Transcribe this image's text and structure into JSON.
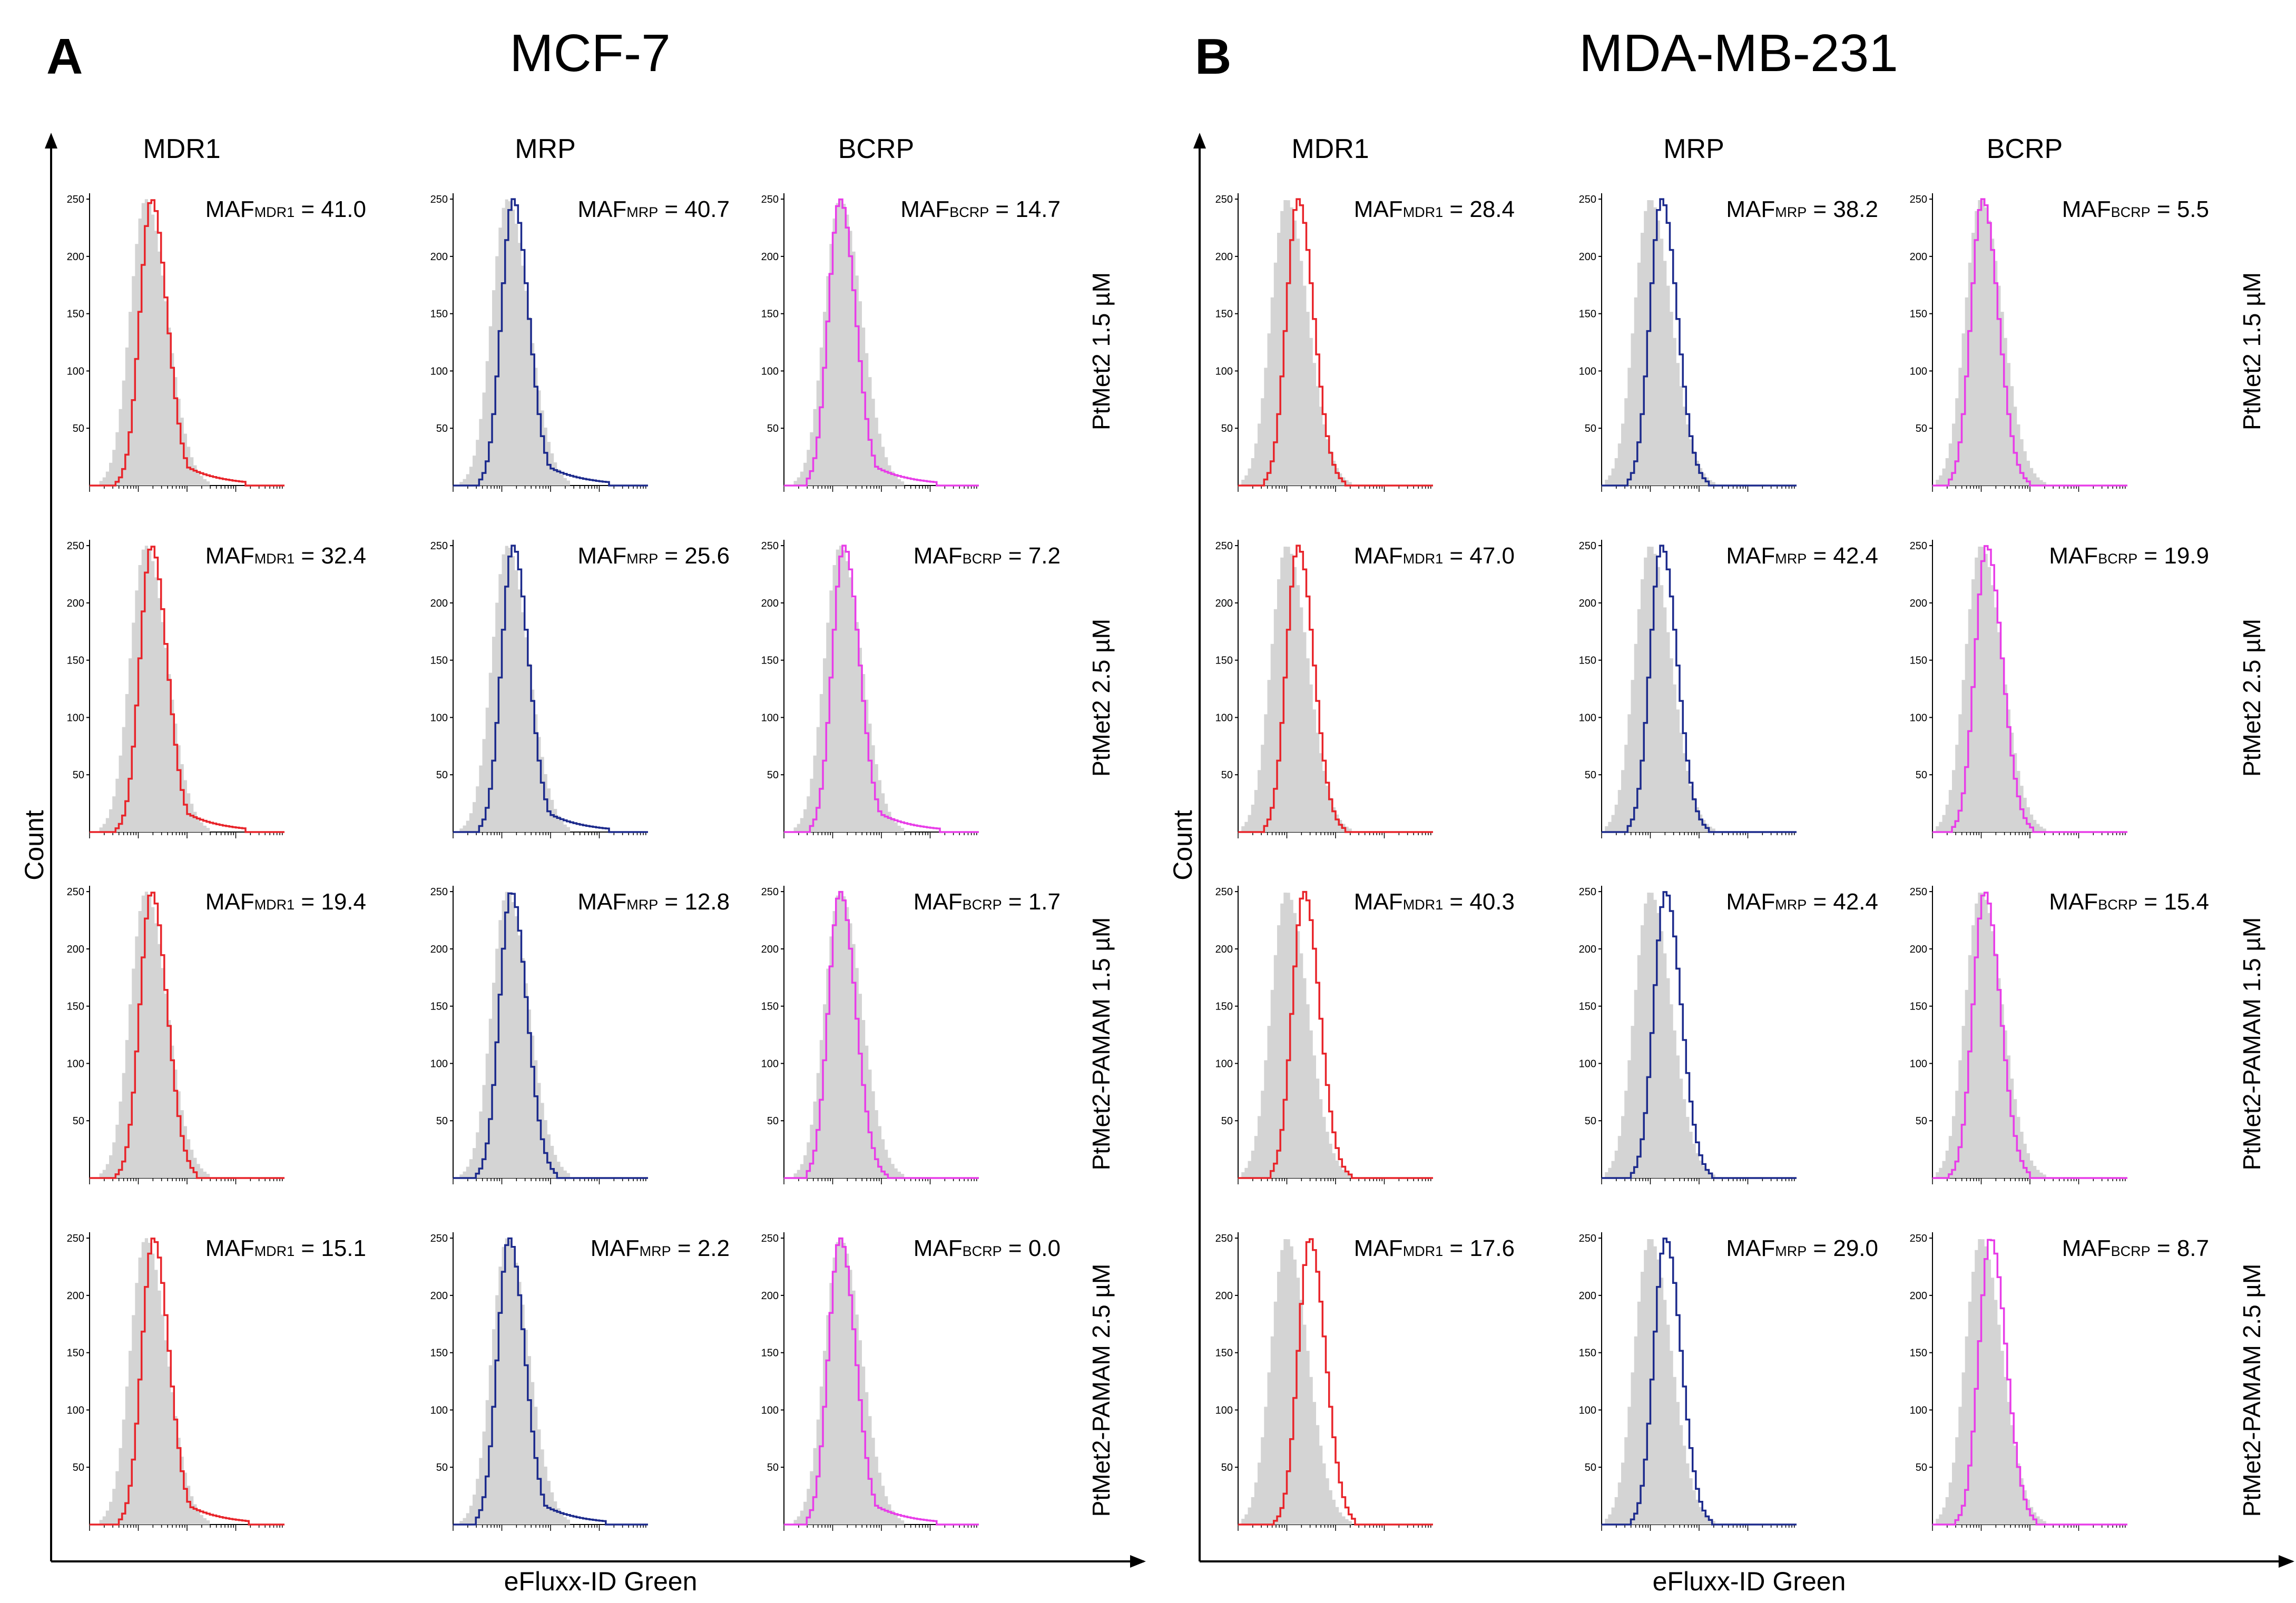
{
  "figure": {
    "panels": [
      {
        "letter": "A",
        "title": "MCF-7",
        "y_axis_label": "Count",
        "x_axis_label": "eFluxx-ID Green",
        "columns": [
          "MDR1",
          "MRP",
          "BCRP"
        ]
      },
      {
        "letter": "B",
        "title": "MDA-MB-231",
        "y_axis_label": "Count",
        "x_axis_label": "eFluxx-ID Green",
        "columns": [
          "MDR1",
          "MRP",
          "BCRP"
        ]
      }
    ],
    "rows": [
      "PtMet2 1.5 µM",
      "PtMet2 2.5 µM",
      "PtMet2-PAMAM 1.5 µM",
      "PtMet2-PAMAM 2.5 µM"
    ],
    "colors": {
      "MDR1": "#e8242a",
      "MRP": "#1c2a8c",
      "BCRP": "#e83de8",
      "control_fill": "#d4d4d4"
    }
  },
  "chart_data": [
    {
      "type": "histogram-grid",
      "title": "MCF-7",
      "panel_letter": "A",
      "xlabel": "eFluxx-ID Green",
      "ylabel": "Count",
      "ylim": [
        0,
        250
      ],
      "y_ticks": [
        50,
        100,
        150,
        200,
        250
      ],
      "columns": [
        "MDR1",
        "MRP",
        "BCRP"
      ],
      "rows": [
        "PtMet2 1.5 µM",
        "PtMet2 2.5 µM",
        "PtMet2-PAMAM 1.5 µM",
        "PtMet2-PAMAM 2.5 µM"
      ],
      "maf_prefix": "MAF",
      "maf_values": [
        [
          "41.0",
          "40.7",
          "14.7"
        ],
        [
          "32.4",
          "25.6",
          "7.2"
        ],
        [
          "19.4",
          "12.8",
          "1.7"
        ],
        [
          "15.1",
          "2.2",
          "0.0"
        ]
      ],
      "control_peak": [
        [
          0.28,
          0.27,
          0.28
        ],
        [
          0.28,
          0.27,
          0.28
        ],
        [
          0.28,
          0.27,
          0.28
        ],
        [
          0.28,
          0.27,
          0.28
        ]
      ],
      "test_peak": [
        [
          0.31,
          0.3,
          0.28
        ],
        [
          0.31,
          0.3,
          0.3
        ],
        [
          0.31,
          0.29,
          0.28
        ],
        [
          0.32,
          0.28,
          0.28
        ]
      ]
    },
    {
      "type": "histogram-grid",
      "title": "MDA-MB-231",
      "panel_letter": "B",
      "xlabel": "eFluxx-ID Green",
      "ylabel": "Count",
      "ylim": [
        0,
        250
      ],
      "y_ticks": [
        50,
        100,
        150,
        200,
        250
      ],
      "columns": [
        "MDR1",
        "MRP",
        "BCRP"
      ],
      "rows": [
        "PtMet2 1.5 µM",
        "PtMet2 2.5 µM",
        "PtMet2-PAMAM 1.5 µM",
        "PtMet2-PAMAM 2.5 µM"
      ],
      "maf_prefix": "MAF",
      "maf_values": [
        [
          "28.4",
          "38.2",
          "5.5"
        ],
        [
          "47.0",
          "42.4",
          "19.9"
        ],
        [
          "40.3",
          "42.4",
          "15.4"
        ],
        [
          "17.6",
          "29.0",
          "8.7"
        ]
      ],
      "control_peak": [
        [
          0.24,
          0.24,
          0.24
        ],
        [
          0.24,
          0.24,
          0.24
        ],
        [
          0.24,
          0.24,
          0.24
        ],
        [
          0.24,
          0.24,
          0.24
        ]
      ],
      "test_peak": [
        [
          0.3,
          0.3,
          0.25
        ],
        [
          0.3,
          0.3,
          0.27
        ],
        [
          0.33,
          0.32,
          0.26
        ],
        [
          0.36,
          0.32,
          0.29
        ]
      ]
    }
  ]
}
